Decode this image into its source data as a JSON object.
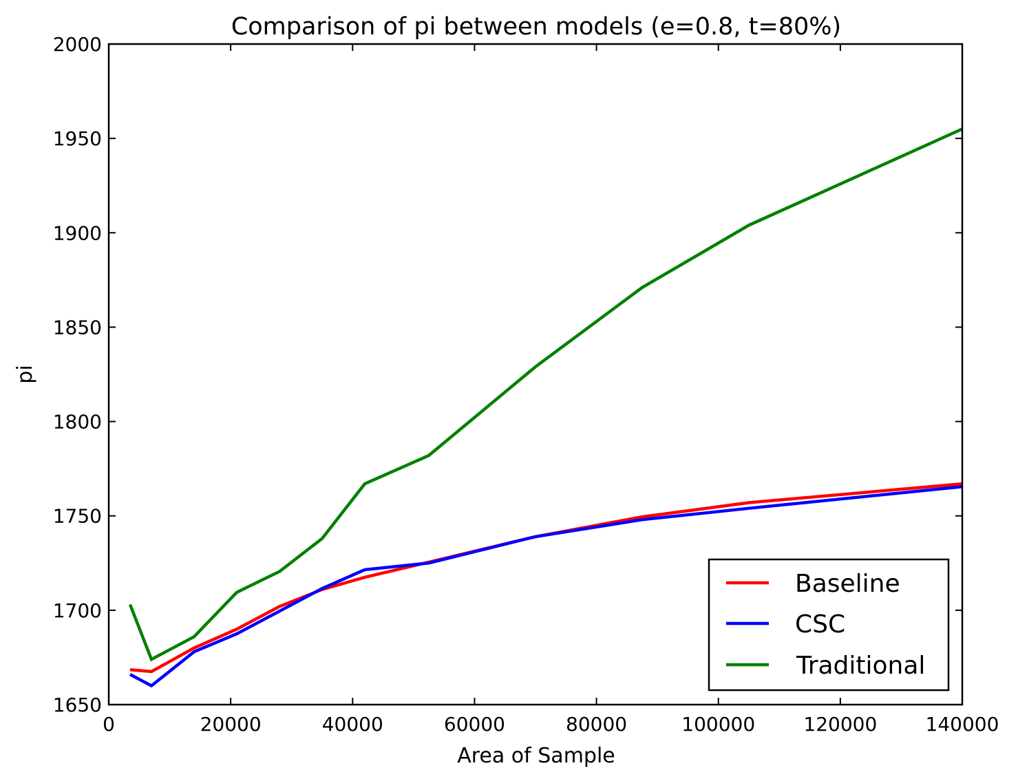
{
  "chart_data": {
    "type": "line",
    "title": "Comparison of pi between models (e=0.8, t=80%)",
    "xlabel": "Area of Sample",
    "ylabel": "pi",
    "xlim": [
      0,
      140000
    ],
    "ylim": [
      1650,
      2000
    ],
    "xticks": [
      0,
      20000,
      40000,
      60000,
      80000,
      100000,
      120000,
      140000
    ],
    "yticks": [
      1650,
      1700,
      1750,
      1800,
      1850,
      1900,
      1950,
      2000
    ],
    "grid": false,
    "legend_position": "lower-right",
    "x": [
      3500,
      7000,
      14000,
      21000,
      28000,
      35000,
      42000,
      52500,
      70000,
      87500,
      105000,
      140000
    ],
    "series": [
      {
        "name": "Baseline",
        "color": "#ff0000",
        "values": [
          1668.5,
          1667.5,
          1680,
          1690,
          1702,
          1711,
          1717.5,
          1725.5,
          1739,
          1749.5,
          1757,
          1767
        ]
      },
      {
        "name": "CSC",
        "color": "#0000ff",
        "values": [
          1666,
          1660,
          1678,
          1687.5,
          1699.5,
          1711.5,
          1721.5,
          1725,
          1739,
          1748,
          1754,
          1765.5
        ]
      },
      {
        "name": "Traditional",
        "color": "#008000",
        "values": [
          1703,
          1674,
          1686,
          1709.5,
          1720.5,
          1738,
          1767,
          1782,
          1829,
          1871,
          1904,
          1955
        ]
      }
    ]
  }
}
